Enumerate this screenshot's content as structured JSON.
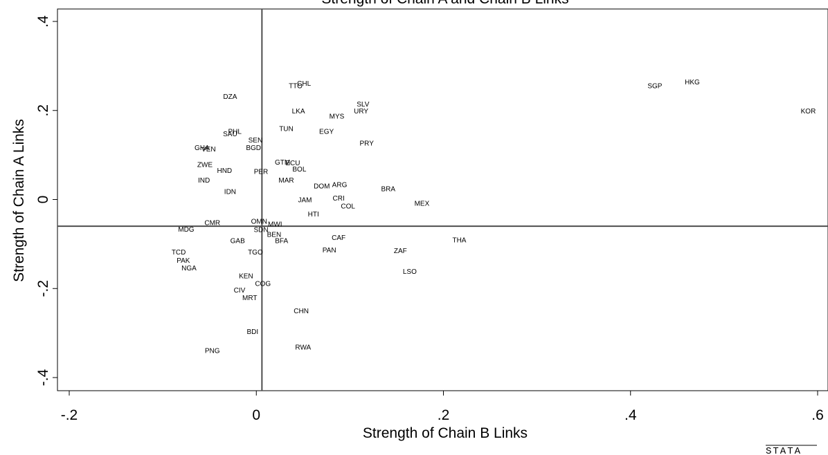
{
  "chart_data": {
    "type": "scatter",
    "title": "Strength of Chain A and Chain B Links",
    "xlabel": "Strength of Chain B Links",
    "ylabel": "Strength of Chain A Links",
    "xlim": [
      -0.2,
      0.6
    ],
    "ylim": [
      -0.4,
      0.4
    ],
    "x_ticks": [
      {
        "value": -0.2,
        "label": "-.2"
      },
      {
        "value": 0,
        "label": "0"
      },
      {
        "value": 0.2,
        "label": ".2"
      },
      {
        "value": 0.4,
        "label": ".4"
      },
      {
        "value": 0.6,
        "label": ".6"
      }
    ],
    "y_ticks": [
      {
        "value": -0.4,
        "label": "-.4"
      },
      {
        "value": -0.2,
        "label": "-.2"
      },
      {
        "value": 0,
        "label": "0"
      },
      {
        "value": 0.2,
        "label": ".2"
      },
      {
        "value": 0.4,
        "label": ".4"
      }
    ],
    "reference_lines": {
      "x": 0.006,
      "y": -0.06
    },
    "grid": false,
    "marker": "label-only",
    "points": [
      {
        "label": "CHL",
        "x": 0.051,
        "y": 0.262
      },
      {
        "label": "TTO",
        "x": 0.042,
        "y": 0.256
      },
      {
        "label": "HKG",
        "x": 0.466,
        "y": 0.265
      },
      {
        "label": "SGP",
        "x": 0.426,
        "y": 0.256
      },
      {
        "label": "DZA",
        "x": -0.028,
        "y": 0.232
      },
      {
        "label": "SLV",
        "x": 0.114,
        "y": 0.215
      },
      {
        "label": "URY",
        "x": 0.112,
        "y": 0.2
      },
      {
        "label": "KOR",
        "x": 0.59,
        "y": 0.2
      },
      {
        "label": "LKA",
        "x": 0.045,
        "y": 0.2
      },
      {
        "label": "MYS",
        "x": 0.086,
        "y": 0.188
      },
      {
        "label": "TUN",
        "x": 0.032,
        "y": 0.16
      },
      {
        "label": "EGY",
        "x": 0.075,
        "y": 0.154
      },
      {
        "label": "PHL",
        "x": -0.023,
        "y": 0.154
      },
      {
        "label": "SAU",
        "x": -0.028,
        "y": 0.148
      },
      {
        "label": "SEN",
        "x": -0.001,
        "y": 0.134
      },
      {
        "label": "PRY",
        "x": 0.118,
        "y": 0.127
      },
      {
        "label": "GHA",
        "x": -0.058,
        "y": 0.117
      },
      {
        "label": "VEN",
        "x": -0.051,
        "y": 0.114
      },
      {
        "label": "BGD",
        "x": -0.003,
        "y": 0.117
      },
      {
        "label": "GTM",
        "x": 0.028,
        "y": 0.085
      },
      {
        "label": "ECU",
        "x": 0.039,
        "y": 0.083
      },
      {
        "label": "BOL",
        "x": 0.046,
        "y": 0.069
      },
      {
        "label": "ZWE",
        "x": -0.055,
        "y": 0.079
      },
      {
        "label": "HND",
        "x": -0.034,
        "y": 0.066
      },
      {
        "label": "PER",
        "x": 0.005,
        "y": 0.064
      },
      {
        "label": "IND",
        "x": -0.056,
        "y": 0.044
      },
      {
        "label": "MAR",
        "x": 0.032,
        "y": 0.044
      },
      {
        "label": "ARG",
        "x": 0.089,
        "y": 0.034
      },
      {
        "label": "DOM",
        "x": 0.07,
        "y": 0.031
      },
      {
        "label": "BRA",
        "x": 0.141,
        "y": 0.025
      },
      {
        "label": "IDN",
        "x": -0.028,
        "y": 0.019
      },
      {
        "label": "CRI",
        "x": 0.088,
        "y": 0.004
      },
      {
        "label": "JAM",
        "x": 0.052,
        "y": 0.0
      },
      {
        "label": "MEX",
        "x": 0.177,
        "y": -0.008
      },
      {
        "label": "COL",
        "x": 0.098,
        "y": -0.014
      },
      {
        "label": "HTI",
        "x": 0.061,
        "y": -0.032
      },
      {
        "label": "CMR",
        "x": -0.047,
        "y": -0.051
      },
      {
        "label": "OMN",
        "x": 0.003,
        "y": -0.048
      },
      {
        "label": "MWI",
        "x": 0.02,
        "y": -0.054
      },
      {
        "label": "MDG",
        "x": -0.075,
        "y": -0.066
      },
      {
        "label": "SDN",
        "x": 0.005,
        "y": -0.067
      },
      {
        "label": "BEN",
        "x": 0.019,
        "y": -0.078
      },
      {
        "label": "BFA",
        "x": 0.027,
        "y": -0.092
      },
      {
        "label": "CAF",
        "x": 0.088,
        "y": -0.085
      },
      {
        "label": "GAB",
        "x": -0.02,
        "y": -0.092
      },
      {
        "label": "THA",
        "x": 0.217,
        "y": -0.09
      },
      {
        "label": "PAN",
        "x": 0.078,
        "y": -0.113
      },
      {
        "label": "ZAF",
        "x": 0.154,
        "y": -0.114
      },
      {
        "label": "TCD",
        "x": -0.083,
        "y": -0.117
      },
      {
        "label": "TGO",
        "x": -0.001,
        "y": -0.117
      },
      {
        "label": "PAK",
        "x": -0.078,
        "y": -0.136
      },
      {
        "label": "NGA",
        "x": -0.072,
        "y": -0.153
      },
      {
        "label": "LSO",
        "x": 0.164,
        "y": -0.161
      },
      {
        "label": "KEN",
        "x": -0.011,
        "y": -0.171
      },
      {
        "label": "COG",
        "x": 0.007,
        "y": -0.188
      },
      {
        "label": "CIV",
        "x": -0.018,
        "y": -0.203
      },
      {
        "label": "MRT",
        "x": -0.007,
        "y": -0.22
      },
      {
        "label": "CHN",
        "x": 0.048,
        "y": -0.249
      },
      {
        "label": "BDI",
        "x": -0.004,
        "y": -0.296
      },
      {
        "label": "RWA",
        "x": 0.05,
        "y": -0.331
      },
      {
        "label": "PNG",
        "x": -0.047,
        "y": -0.339
      }
    ]
  },
  "footer": {
    "logo_text": "STATA"
  },
  "colors": {
    "axis": "#000000",
    "reference_line": "#4d4d4d",
    "text": "#000000"
  }
}
